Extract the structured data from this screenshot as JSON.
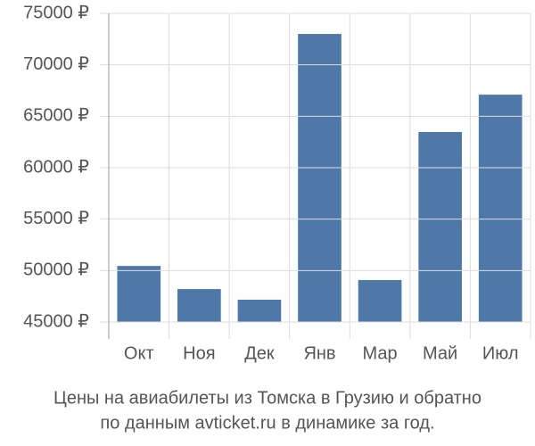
{
  "chart_data": {
    "type": "bar",
    "title": [
      "Цены на авиабилеты из Томска в Грузию и обратно",
      "по данным avticket.ru в динамике за год."
    ],
    "categories": [
      "Окт",
      "Ноя",
      "Дек",
      "Янв",
      "Мар",
      "Май",
      "Июл"
    ],
    "values": [
      50450,
      48200,
      47170,
      73000,
      49080,
      63470,
      67100
    ],
    "color": "#4e78a8",
    "ylim": [
      45000,
      75000
    ],
    "yticks": [
      {
        "value": 45000,
        "label": "45000 ₽"
      },
      {
        "value": 50000,
        "label": "50000 ₽"
      },
      {
        "value": 55000,
        "label": "55000 ₽"
      },
      {
        "value": 60000,
        "label": "60000 ₽"
      },
      {
        "value": 65000,
        "label": "65000 ₽"
      },
      {
        "value": 70000,
        "label": "70000 ₽"
      },
      {
        "value": 75000,
        "label": "75000 ₽"
      }
    ],
    "grid": true
  }
}
